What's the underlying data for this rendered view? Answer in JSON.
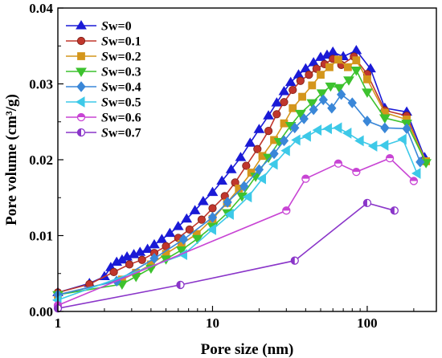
{
  "chart_data": {
    "type": "line",
    "title": "",
    "xlabel": "Pore size (nm)",
    "ylabel": "Pore volume (cm³/g)",
    "x_scale": "log",
    "xlim": [
      1,
      280
    ],
    "ylim": [
      0,
      0.04
    ],
    "x_ticks": [
      {
        "value": 1,
        "label": "1"
      },
      {
        "value": 10,
        "label": "10"
      },
      {
        "value": 100,
        "label": "100"
      }
    ],
    "y_ticks": [
      {
        "value": 0,
        "label": "0.00"
      },
      {
        "value": 0.01,
        "label": "0.01"
      },
      {
        "value": 0.02,
        "label": "0.02"
      },
      {
        "value": 0.03,
        "label": "0.03"
      },
      {
        "value": 0.04,
        "label": "0.04"
      }
    ],
    "grid": false,
    "legend_position": "top-left",
    "series": [
      {
        "name": "Sw=0",
        "legend_italic_prefix": "S",
        "legend_suffix": "w=0",
        "color": "#1a1ad6",
        "marker": "triangle-up",
        "x": [
          1,
          1.6,
          2.0,
          2.2,
          2.4,
          2.6,
          2.8,
          3.1,
          3.4,
          3.8,
          4.2,
          4.7,
          5.3,
          6.0,
          6.8,
          7.7,
          8.7,
          10,
          11.5,
          13.2,
          15.2,
          17.5,
          20,
          23,
          26,
          29,
          32,
          36,
          40,
          45,
          50,
          55,
          60,
          70,
          85,
          105,
          130,
          180,
          235
        ],
        "y": [
          0.0025,
          0.0037,
          0.0046,
          0.0058,
          0.0065,
          0.0068,
          0.0072,
          0.0075,
          0.0078,
          0.0082,
          0.0088,
          0.0095,
          0.0103,
          0.0112,
          0.0122,
          0.0133,
          0.0145,
          0.0157,
          0.0172,
          0.0187,
          0.0203,
          0.0222,
          0.024,
          0.0258,
          0.0275,
          0.029,
          0.0302,
          0.0312,
          0.032,
          0.0328,
          0.0335,
          0.0338,
          0.0342,
          0.0336,
          0.0344,
          0.032,
          0.0268,
          0.0263,
          0.0203
        ]
      },
      {
        "name": "Sw=0.1",
        "legend_italic_prefix": "S",
        "legend_suffix": "w=0.1",
        "color": "#c0362c",
        "marker": "circle",
        "x": [
          1,
          1.6,
          2.3,
          2.9,
          3.5,
          4.2,
          5.0,
          6.0,
          7.1,
          8.5,
          10,
          12,
          14,
          16.5,
          19.5,
          23,
          26,
          29,
          33,
          37,
          42,
          47,
          53,
          60,
          68,
          82,
          100,
          130,
          180,
          235
        ],
        "y": [
          0.0025,
          0.0036,
          0.0052,
          0.0062,
          0.0068,
          0.0077,
          0.0086,
          0.0097,
          0.0108,
          0.0121,
          0.0136,
          0.0152,
          0.017,
          0.0192,
          0.0214,
          0.0238,
          0.026,
          0.0276,
          0.0292,
          0.0304,
          0.0312,
          0.032,
          0.0326,
          0.0333,
          0.0325,
          0.0336,
          0.0313,
          0.0265,
          0.0258,
          0.0198
        ]
      },
      {
        "name": "Sw=0.2",
        "legend_italic_prefix": "S",
        "legend_suffix": "w=0.2",
        "color": "#d4961c",
        "marker": "square",
        "x": [
          1,
          2.6,
          3.2,
          4.0,
          5.0,
          6.3,
          7.9,
          10,
          12.4,
          14.8,
          17.8,
          21,
          25,
          29,
          33,
          38,
          44,
          50,
          57,
          65,
          75,
          85,
          100,
          130,
          180,
          240
        ],
        "y": [
          0.0022,
          0.0042,
          0.0051,
          0.0062,
          0.0076,
          0.0089,
          0.0102,
          0.0122,
          0.0143,
          0.0162,
          0.0183,
          0.0205,
          0.0226,
          0.0248,
          0.0268,
          0.0283,
          0.0298,
          0.0312,
          0.0322,
          0.0332,
          0.0322,
          0.0331,
          0.0306,
          0.0262,
          0.0253,
          0.0198
        ]
      },
      {
        "name": "Sw=0.3",
        "legend_italic_prefix": "S",
        "legend_suffix": "w=0.3",
        "color": "#3dc22e",
        "marker": "triangle-down",
        "x": [
          1,
          2.6,
          3.2,
          4.0,
          5.0,
          6.3,
          8.0,
          10,
          12.5,
          15.5,
          19,
          23,
          27,
          32,
          37,
          44,
          51,
          58,
          66,
          76,
          85,
          100,
          130,
          180,
          240
        ],
        "y": [
          0.0022,
          0.0036,
          0.0046,
          0.0057,
          0.0069,
          0.0081,
          0.0096,
          0.0112,
          0.013,
          0.0152,
          0.0178,
          0.0203,
          0.0224,
          0.0245,
          0.0261,
          0.0275,
          0.0288,
          0.0297,
          0.0295,
          0.0305,
          0.0318,
          0.0289,
          0.0255,
          0.0248,
          0.0196
        ]
      },
      {
        "name": "Sw=0.4",
        "legend_italic_prefix": "S",
        "legend_suffix": "w=0.4",
        "color": "#3a87d8",
        "marker": "diamond",
        "x": [
          1,
          2.4,
          4.2,
          6.5,
          10,
          12.5,
          16,
          20,
          25,
          29,
          34,
          39,
          45,
          52,
          59,
          68,
          80,
          100,
          130,
          180,
          220
        ],
        "y": [
          0.0022,
          0.004,
          0.007,
          0.0095,
          0.0124,
          0.0144,
          0.0165,
          0.0187,
          0.0208,
          0.0225,
          0.0242,
          0.0254,
          0.0266,
          0.0279,
          0.0268,
          0.0286,
          0.0275,
          0.0251,
          0.0242,
          0.0241,
          0.0197
        ]
      },
      {
        "name": "Sw=0.5",
        "legend_italic_prefix": "S",
        "legend_suffix": "w=0.5",
        "color": "#3dc9e8",
        "marker": "triangle-left",
        "x": [
          1,
          6.5,
          10,
          13,
          17,
          21,
          25,
          30,
          35,
          41,
          48,
          56,
          65,
          75,
          90,
          110,
          130,
          170,
          210
        ],
        "y": [
          0.0015,
          0.0075,
          0.0108,
          0.0128,
          0.0151,
          0.0175,
          0.0194,
          0.0212,
          0.0226,
          0.0231,
          0.0239,
          0.0241,
          0.0242,
          0.0235,
          0.0225,
          0.0218,
          0.0219,
          0.0227,
          0.0182
        ]
      },
      {
        "name": "Sw=0.6",
        "legend_italic_prefix": "S",
        "legend_suffix": "w=0.6",
        "color": "#c844d4",
        "marker": "circle-top-half",
        "x": [
          1,
          30,
          40,
          65,
          85,
          140,
          200
        ],
        "y": [
          0.0008,
          0.0133,
          0.0175,
          0.0195,
          0.0184,
          0.0202,
          0.0172
        ]
      },
      {
        "name": "Sw=0.7",
        "legend_italic_prefix": "S",
        "legend_suffix": "w=0.7",
        "color": "#8a35c9",
        "marker": "circle-left-half",
        "x": [
          1,
          6.2,
          34,
          100,
          150
        ],
        "y": [
          0.0004,
          0.0035,
          0.0067,
          0.0143,
          0.0133
        ]
      }
    ]
  }
}
